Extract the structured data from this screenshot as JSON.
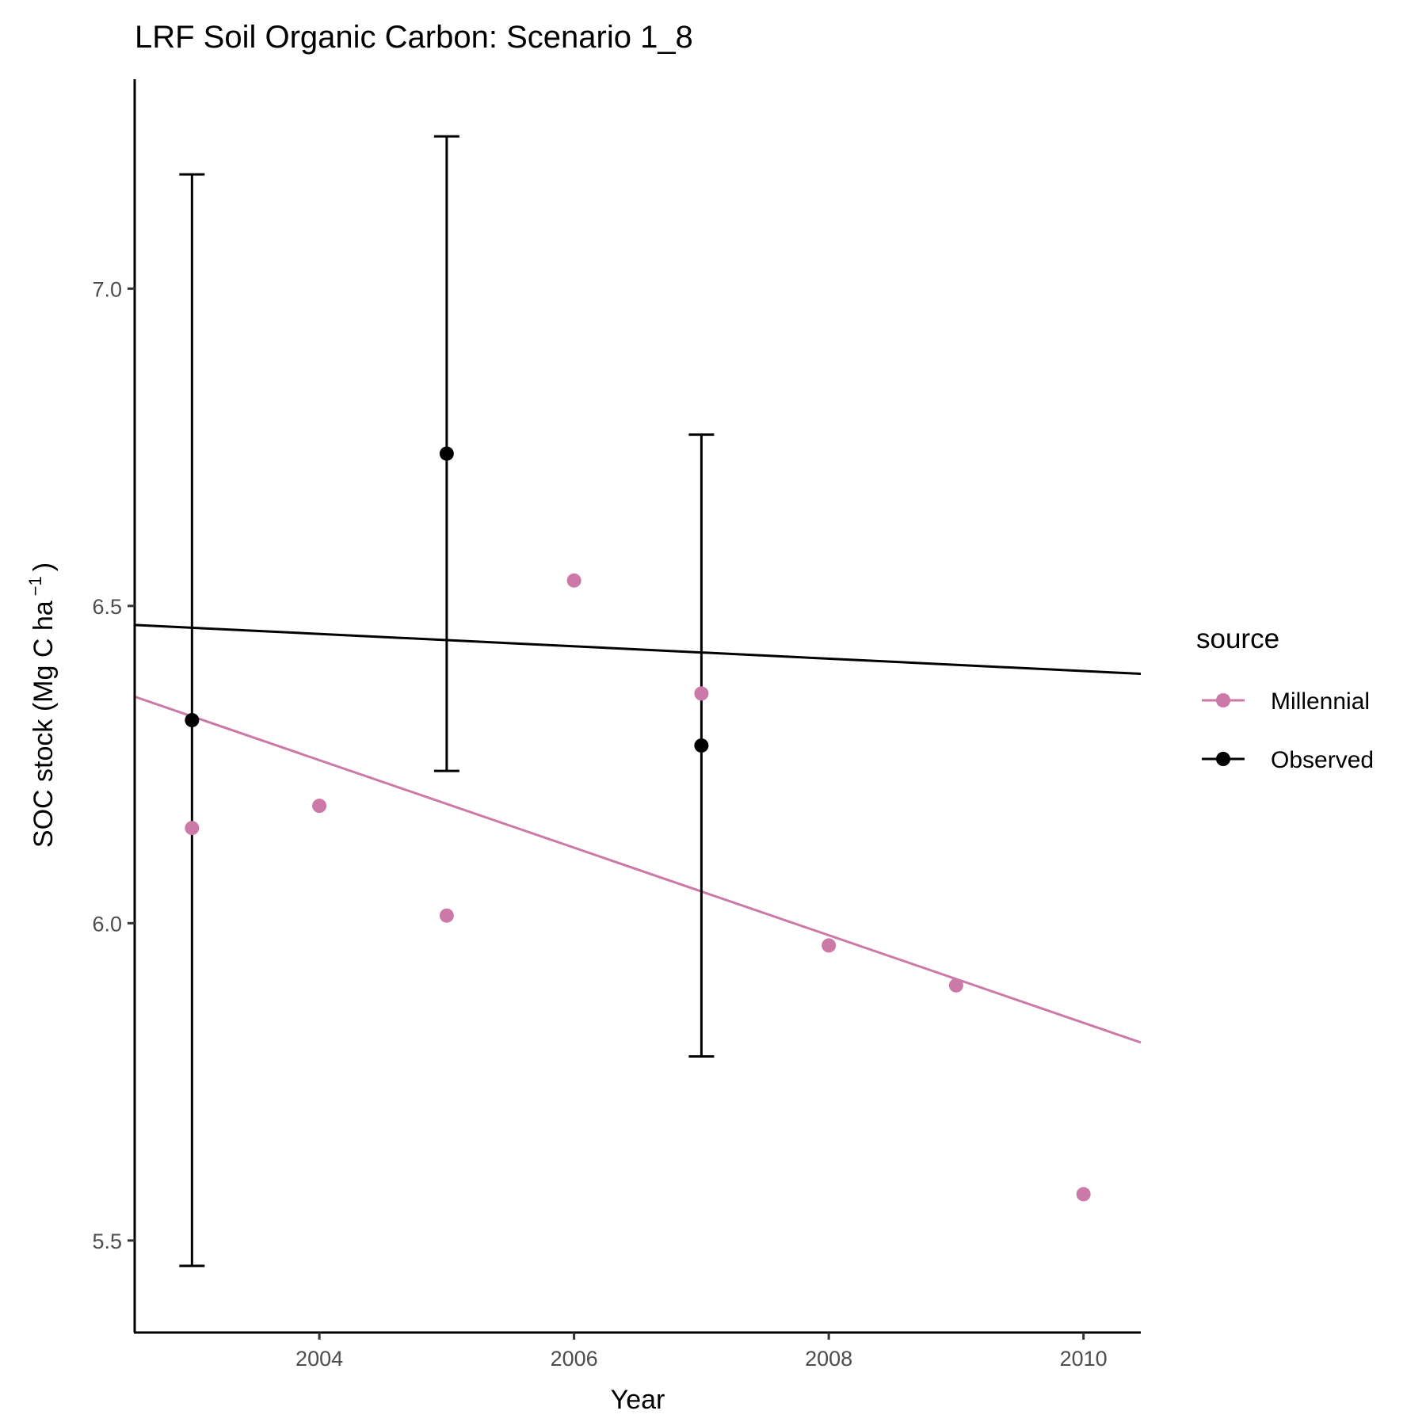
{
  "chart_data": {
    "type": "scatter",
    "title": "LRF Soil Organic Carbon: Scenario  1_8",
    "xlabel": "Year",
    "ylabel_main": "SOC stock (Mg C ha",
    "ylabel_sup": "−1",
    "ylabel_close": ")",
    "xlim": [
      2002.55,
      2010.45
    ],
    "ylim": [
      5.355,
      7.33
    ],
    "x_ticks": [
      2004,
      2006,
      2008,
      2010
    ],
    "y_ticks": [
      5.5,
      6.0,
      6.5,
      7.0
    ],
    "y_tick_labels": [
      "5.5",
      "6.0",
      "6.5",
      "7.0"
    ],
    "grid": false,
    "legend": {
      "title": "source",
      "position": "right",
      "entries": [
        "Millennial",
        "Observed"
      ]
    },
    "series": [
      {
        "name": "Millennial",
        "color": "#cc79a7",
        "points": [
          {
            "x": 2003,
            "y": 6.15
          },
          {
            "x": 2004,
            "y": 6.185
          },
          {
            "x": 2005,
            "y": 6.012
          },
          {
            "x": 2006,
            "y": 6.54
          },
          {
            "x": 2007,
            "y": 6.362
          },
          {
            "x": 2008,
            "y": 5.965
          },
          {
            "x": 2009,
            "y": 5.902
          },
          {
            "x": 2010,
            "y": 5.573
          }
        ],
        "trend": {
          "x": [
            2002.55,
            2010.45
          ],
          "y": [
            6.357,
            5.812
          ]
        }
      },
      {
        "name": "Observed",
        "color": "#000000",
        "points": [
          {
            "x": 2003,
            "y": 6.32,
            "ymin": 5.46,
            "ymax": 7.18
          },
          {
            "x": 2005,
            "y": 6.74,
            "ymin": 6.24,
            "ymax": 7.24
          },
          {
            "x": 2007,
            "y": 6.28,
            "ymin": 5.79,
            "ymax": 6.77
          }
        ],
        "trend": {
          "x": [
            2002.55,
            2010.45
          ],
          "y": [
            6.47,
            6.393
          ]
        }
      }
    ]
  }
}
